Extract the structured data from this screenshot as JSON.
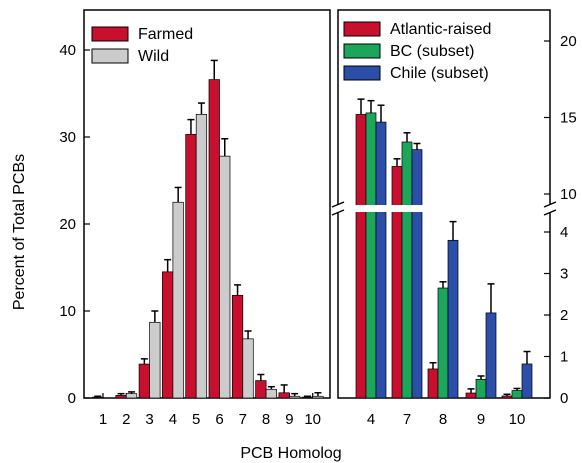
{
  "chart_data": [
    {
      "type": "bar",
      "categories": [
        "1",
        "2",
        "3",
        "4",
        "5",
        "6",
        "7",
        "8",
        "9",
        "10"
      ],
      "series": [
        {
          "name": "Farmed",
          "values": [
            0.1,
            0.3,
            3.9,
            14.5,
            30.3,
            36.6,
            11.8,
            2.0,
            0.6,
            0.1
          ],
          "errors": [
            0.1,
            0.2,
            0.6,
            1.4,
            1.7,
            2.2,
            1.2,
            0.7,
            0.9,
            0.1
          ]
        },
        {
          "name": "Wild",
          "values": [
            0.0,
            0.5,
            8.7,
            22.5,
            32.6,
            27.8,
            6.8,
            1.0,
            0.2,
            0.2
          ],
          "errors": [
            0.0,
            0.2,
            1.3,
            1.7,
            1.3,
            2.0,
            0.9,
            0.3,
            0.3,
            0.4
          ]
        }
      ],
      "xlabel": "PCB Homolog",
      "ylabel": "Percent of Total PCBs",
      "ylim": [
        0,
        45
      ],
      "yticks": [
        "0",
        "10",
        "20",
        "30",
        "40"
      ],
      "legend_position": "top-left",
      "colors": {
        "Farmed": "#C8102E",
        "Wild": "#CCCCCC"
      }
    },
    {
      "type": "bar",
      "categories": [
        "4",
        "7",
        "8",
        "9",
        "10"
      ],
      "series": [
        {
          "name": "Atlantic-raised",
          "values": [
            15.2,
            11.8,
            0.7,
            0.12,
            0.05
          ],
          "errors": [
            1.0,
            0.5,
            0.15,
            0.1,
            0.04
          ]
        },
        {
          "name": "BC (subset)",
          "values": [
            15.3,
            13.4,
            2.65,
            0.45,
            0.18
          ],
          "errors": [
            0.8,
            0.6,
            0.15,
            0.08,
            0.05
          ]
        },
        {
          "name": "Chile (subset)",
          "values": [
            14.7,
            12.9,
            3.8,
            2.05,
            0.82
          ],
          "errors": [
            1.1,
            0.4,
            0.45,
            0.7,
            0.3
          ]
        }
      ],
      "ylim_lower": [
        0,
        5
      ],
      "ylim_upper": [
        9,
        21
      ],
      "yticks_lower": [
        "0",
        "1",
        "2",
        "3",
        "4"
      ],
      "yticks_upper": [
        "10",
        "15",
        "20"
      ],
      "axis_break": true,
      "yaxis_side": "right",
      "legend_position": "top-right",
      "colors": {
        "Atlantic-raised": "#C8102E",
        "BC (subset)": "#1CA65B",
        "Chile (subset)": "#2B4EA8"
      }
    }
  ]
}
